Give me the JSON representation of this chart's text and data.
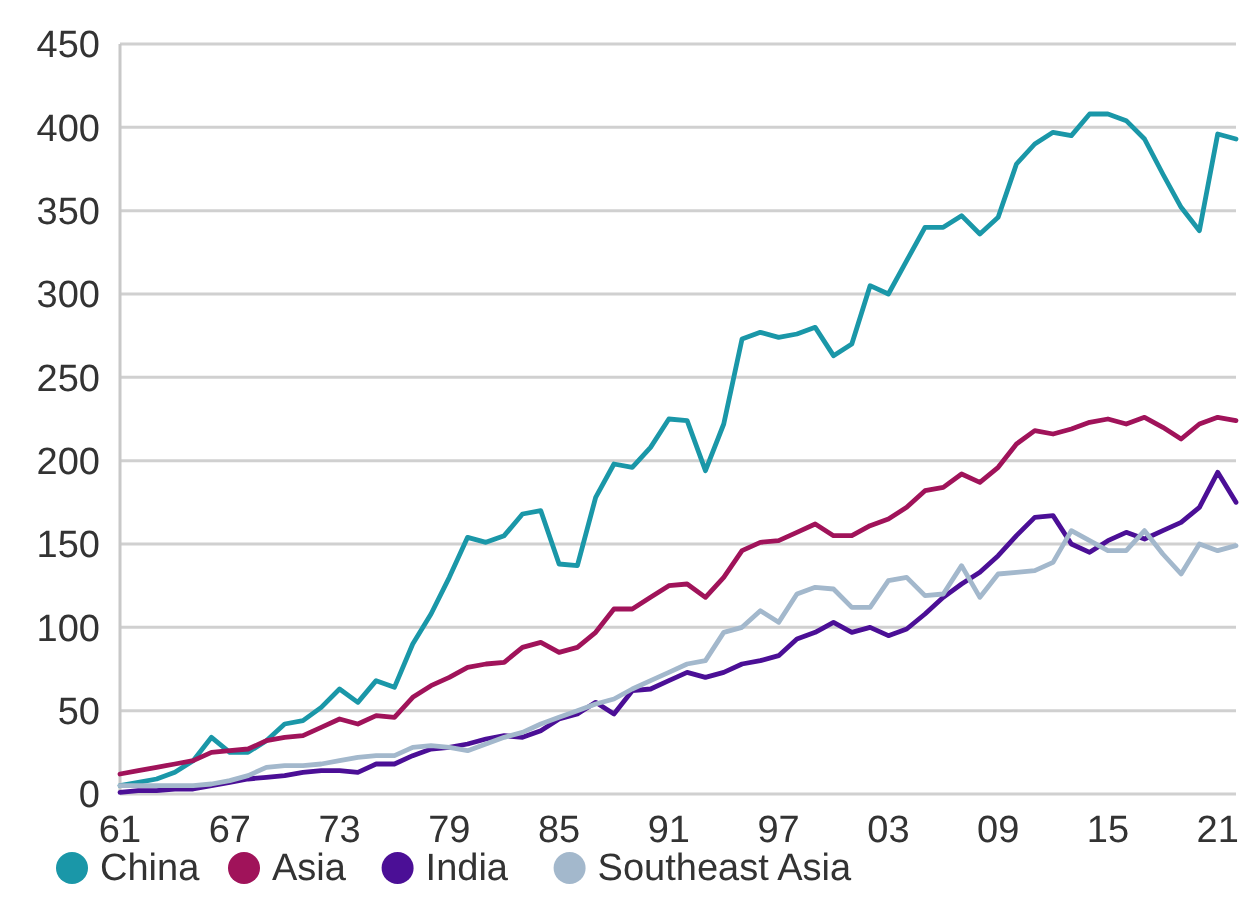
{
  "chart_data": {
    "type": "line",
    "x": [
      1961,
      1962,
      1963,
      1964,
      1965,
      1966,
      1967,
      1968,
      1969,
      1970,
      1971,
      1972,
      1973,
      1974,
      1975,
      1976,
      1977,
      1978,
      1979,
      1980,
      1981,
      1982,
      1983,
      1984,
      1985,
      1986,
      1987,
      1988,
      1989,
      1990,
      1991,
      1992,
      1993,
      1994,
      1995,
      1996,
      1997,
      1998,
      1999,
      2000,
      2001,
      2002,
      2003,
      2004,
      2005,
      2006,
      2007,
      2008,
      2009,
      2010,
      2011,
      2012,
      2013,
      2014,
      2015,
      2016,
      2017,
      2018,
      2019,
      2020,
      2021,
      2022
    ],
    "xlim": [
      1961,
      2022
    ],
    "xticks": [
      {
        "value": 1961,
        "label": "61"
      },
      {
        "value": 1967,
        "label": "67"
      },
      {
        "value": 1973,
        "label": "73"
      },
      {
        "value": 1979,
        "label": "79"
      },
      {
        "value": 1985,
        "label": "85"
      },
      {
        "value": 1991,
        "label": "91"
      },
      {
        "value": 1997,
        "label": "97"
      },
      {
        "value": 2003,
        "label": "03"
      },
      {
        "value": 2009,
        "label": "09"
      },
      {
        "value": 2015,
        "label": "15"
      },
      {
        "value": 2021,
        "label": "21"
      }
    ],
    "ylim": [
      0,
      450
    ],
    "yticks": [
      0,
      50,
      100,
      150,
      200,
      250,
      300,
      350,
      400,
      450
    ],
    "grid": "y",
    "legend": "bottom",
    "marker": "none",
    "line_style": "solid",
    "series": [
      {
        "name": "China",
        "color": "#1a97a8",
        "values": [
          5,
          7,
          9,
          13,
          20,
          34,
          25,
          25,
          32,
          42,
          44,
          52,
          63,
          55,
          68,
          64,
          90,
          108,
          130,
          154,
          151,
          155,
          168,
          170,
          138,
          137,
          178,
          198,
          196,
          208,
          225,
          224,
          194,
          222,
          273,
          277,
          274,
          276,
          280,
          263,
          270,
          305,
          300,
          320,
          340,
          340,
          347,
          336,
          346,
          378,
          390,
          397,
          395,
          408,
          408,
          404,
          393,
          372,
          352,
          338,
          396,
          393
        ]
      },
      {
        "name": "Asia",
        "color": "#a0135a",
        "values": [
          12,
          14,
          16,
          18,
          20,
          25,
          26,
          27,
          32,
          34,
          35,
          40,
          45,
          42,
          47,
          46,
          58,
          65,
          70,
          76,
          78,
          79,
          88,
          91,
          85,
          88,
          97,
          111,
          111,
          118,
          125,
          126,
          118,
          130,
          146,
          151,
          152,
          157,
          162,
          155,
          155,
          161,
          165,
          172,
          182,
          184,
          192,
          187,
          196,
          210,
          218,
          216,
          219,
          223,
          225,
          222,
          226,
          220,
          213,
          222,
          226,
          224
        ]
      },
      {
        "name": "India",
        "color": "#4b0f96",
        "values": [
          1,
          2,
          2,
          3,
          3,
          5,
          7,
          9,
          10,
          11,
          13,
          14,
          14,
          13,
          18,
          18,
          23,
          27,
          28,
          30,
          33,
          35,
          34,
          38,
          45,
          48,
          55,
          48,
          62,
          63,
          68,
          73,
          70,
          73,
          78,
          80,
          83,
          93,
          97,
          103,
          97,
          100,
          95,
          99,
          108,
          118,
          126,
          133,
          143,
          155,
          166,
          167,
          150,
          145,
          152,
          157,
          153,
          158,
          163,
          172,
          193,
          175
        ]
      },
      {
        "name": "Southeast Asia",
        "color": "#a3b8cc",
        "values": [
          5,
          5,
          5,
          5,
          5,
          6,
          8,
          11,
          16,
          17,
          17,
          18,
          20,
          22,
          23,
          23,
          28,
          29,
          28,
          26,
          30,
          34,
          37,
          42,
          46,
          50,
          54,
          57,
          63,
          68,
          73,
          78,
          80,
          97,
          100,
          110,
          103,
          120,
          124,
          123,
          112,
          112,
          128,
          130,
          119,
          120,
          137,
          118,
          132,
          133,
          134,
          139,
          158,
          152,
          146,
          146,
          158,
          144,
          132,
          150,
          146,
          149
        ]
      }
    ]
  }
}
